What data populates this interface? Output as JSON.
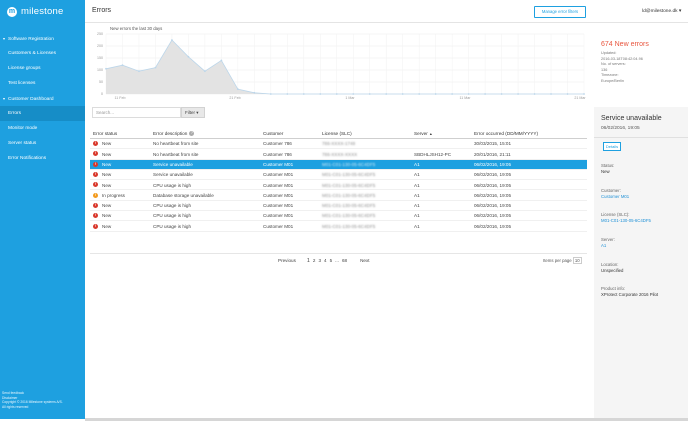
{
  "app": {
    "logo_text": "milestone",
    "logo_glyph": "m",
    "page_title": "Errors",
    "manage_filters_label": "Manage error filters",
    "user": "ld@milestone.dk",
    "user_caret": "▾"
  },
  "sidebar": {
    "items": [
      {
        "label": "Software Registration",
        "group": true,
        "caret": "▾"
      },
      {
        "label": "Customers & Licenses"
      },
      {
        "label": "License groups"
      },
      {
        "label": "Test licenses"
      },
      {
        "label": "Customer Dashboard",
        "group": true,
        "caret": "▾"
      },
      {
        "label": "Errors",
        "active": true
      },
      {
        "label": "Monitor mode"
      },
      {
        "label": "Server status"
      },
      {
        "label": "Error Notifications"
      }
    ],
    "footer": [
      "Send feedback",
      "Disclaimer",
      "Copyright © 2016 Milestone systems A/S.",
      "All rights reserved"
    ]
  },
  "chart_data": {
    "type": "area",
    "title": "New errors the last 30 days",
    "x_tick_labels": [
      "11 Feb",
      "21 Feb",
      "1 Mar",
      "11 Mar",
      "21 Mar"
    ],
    "y_tick_labels": [
      "250",
      "200",
      "150",
      "100",
      "50",
      "0"
    ],
    "ylim": [
      0,
      250
    ],
    "values": [
      105,
      120,
      95,
      110,
      225,
      155,
      95,
      140,
      20,
      5,
      0,
      0,
      0,
      0,
      0,
      0,
      0,
      0,
      0,
      0,
      0,
      0,
      0,
      0,
      0,
      0,
      0,
      0,
      0,
      0
    ],
    "colors": {
      "fill": "#e3e3e3",
      "line": "#bcd6ea",
      "point": "#bcd6ea"
    },
    "grid": true
  },
  "stats": {
    "headline": "674 New errors",
    "lines": [
      "Updated:",
      "2016-03-18T08:42:04.96",
      "No. of servers:",
      "136",
      "Timezone:",
      "Europe/Berlin"
    ]
  },
  "search": {
    "placeholder": "Search..."
  },
  "filter": {
    "label": "Filter",
    "caret": "▾"
  },
  "table": {
    "headers": [
      "Error status",
      "Error description",
      "Customer",
      "License (SLC)",
      "Server",
      "Error occurred (DD/MM/YYYY)"
    ],
    "desc_info_glyph": "?",
    "server_sort_glyph": "▲",
    "rows": [
      {
        "status": "New",
        "description": "No heartbeat from site",
        "customer": "Customer 786",
        "license": "786-XXXX-1748",
        "server": "",
        "occurred": "30/03/2015, 15:01",
        "level": "error"
      },
      {
        "status": "New",
        "description": "No heartbeat from site",
        "customer": "Customer 786",
        "license": "786-XXXX-XXXX",
        "server": "SBDHLJSH12-PC",
        "occurred": "20/01/2016, 21:11",
        "level": "error"
      },
      {
        "status": "New",
        "description": "Service unavailable",
        "customer": "Customer M01",
        "license": "M01-C01-130-05-6C4DF5",
        "server": "A1",
        "occurred": "06/02/2016, 19:05",
        "level": "error",
        "selected": true
      },
      {
        "status": "New",
        "description": "Service unavailable",
        "customer": "Customer M01",
        "license": "M01-C01-130-05-6C4DF5",
        "server": "A1",
        "occurred": "06/02/2016, 19:05",
        "level": "error"
      },
      {
        "status": "New",
        "description": "CPU usage is high",
        "customer": "Customer M01",
        "license": "M01-C01-130-05-6C4DF5",
        "server": "A1",
        "occurred": "06/02/2016, 19:05",
        "level": "error"
      },
      {
        "status": "In progress",
        "description": "Database storage unavailable",
        "customer": "Customer M01",
        "license": "M01-C01-130-05-6C4DF5",
        "server": "A1",
        "occurred": "06/02/2016, 19:05",
        "level": "warn"
      },
      {
        "status": "New",
        "description": "CPU usage is high",
        "customer": "Customer M01",
        "license": "M01-C01-130-05-6C4DF5",
        "server": "A1",
        "occurred": "06/02/2016, 19:05",
        "level": "error"
      },
      {
        "status": "New",
        "description": "CPU usage is high",
        "customer": "Customer M01",
        "license": "M01-C01-130-05-6C4DF5",
        "server": "A1",
        "occurred": "06/02/2016, 19:05",
        "level": "error"
      },
      {
        "status": "New",
        "description": "CPU usage is high",
        "customer": "Customer M01",
        "license": "M01-C01-130-05-6C4DF5",
        "server": "A1",
        "occurred": "06/02/2016, 19:05",
        "level": "error"
      }
    ],
    "status_glyph": "!"
  },
  "pagination": {
    "previous": "Previous",
    "pages": [
      "1",
      "2",
      "3",
      "4",
      "5",
      "...",
      "68"
    ],
    "current": "1",
    "next": "Next",
    "per_page_label": "Items per page",
    "per_page_value": "10"
  },
  "detail": {
    "title": "Service unavailable",
    "subtitle": "06/02/2016, 19:05",
    "button": "Details",
    "fields": [
      {
        "label": "Status:",
        "value": "New"
      },
      {
        "label": "Customer:",
        "value": "Customer M01",
        "link": true
      },
      {
        "label": "License (SLC):",
        "value": "M01-C01-130-05-6C4DF5",
        "link": true
      },
      {
        "label": "Server:",
        "value": "A1",
        "link": true
      },
      {
        "label": "Location:",
        "value": "Unspecified"
      },
      {
        "label": "Product info:",
        "value": "XProtect Corporate 2016 Pilot"
      }
    ]
  }
}
